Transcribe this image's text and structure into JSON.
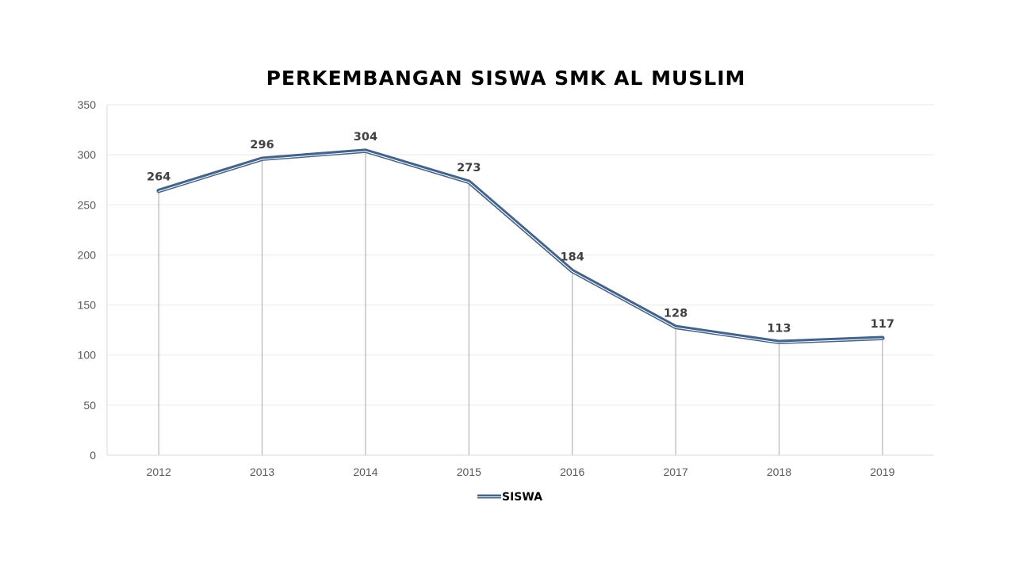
{
  "chart_data": {
    "type": "line",
    "title": "PERKEMBANGAN SISWA SMK AL MUSLIM",
    "categories": [
      "2012",
      "2013",
      "2014",
      "2015",
      "2016",
      "2017",
      "2018",
      "2019"
    ],
    "series": [
      {
        "name": "SISWA",
        "values": [
          264,
          296,
          304,
          273,
          184,
          128,
          113,
          117
        ],
        "color": "#44638a"
      }
    ],
    "ylim": [
      0,
      350
    ],
    "yticks": [
      "0",
      "50",
      "100",
      "150",
      "200",
      "250",
      "300",
      "350"
    ],
    "data_labels": true,
    "drop_lines": true,
    "grid": true,
    "legend": "bottom"
  }
}
